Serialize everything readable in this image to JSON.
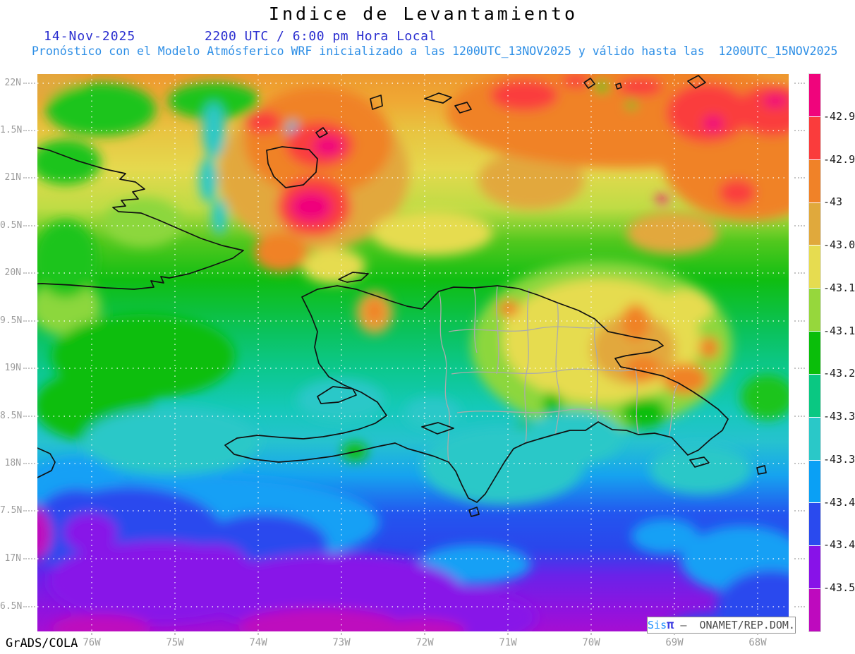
{
  "header": {
    "title": "Indice de Levantamiento",
    "date": "14-Nov-2025",
    "time": "2200 UTC / 6:00 pm Hora Local",
    "subtitle": "Pronóstico con el Modelo Atmósferico WRF inicializado a las 1200UTC_13NOV2025 y válido hasta las  1200UTC_15NOV2025",
    "title_color": "#000000",
    "date_color": "#2B2FD0",
    "subtitle_color": "#2E8FE6"
  },
  "map": {
    "lat_labels": [
      "22N",
      "1.5N",
      "21N",
      "0.5N",
      "20N",
      "9.5N",
      "19N",
      "8.5N",
      "18N",
      "7.5N",
      "17N",
      "6.5N"
    ],
    "lon_labels": [
      "76W",
      "75W",
      "74W",
      "73W",
      "72W",
      "71W",
      "70W",
      "69W",
      "68W"
    ],
    "grid_color": "#FFFFFF",
    "coastline_color": "#111111",
    "province_border_color": "#ABABAB",
    "axis_label_color": "#9C9C9C"
  },
  "colorbar": {
    "tick_labels": [
      "-42.9",
      "-42.9",
      "-43",
      "-43.0",
      "-43.1",
      "-43.1",
      "-43.2",
      "-43.3",
      "-43.3",
      "-43.4",
      "-43.4",
      "-43.5"
    ],
    "segment_colors": [
      "#F0047C",
      "#FA3C3C",
      "#F08228",
      "#E0A93C",
      "#E6DC50",
      "#96D73C",
      "#0ABE0A",
      "#0AC882",
      "#2AC8C8",
      "#0AA0F5",
      "#2A4AEE",
      "#8812E8",
      "#BE0ABE"
    ]
  },
  "footer": {
    "credit": "GrADS/COLA",
    "badge_sis": "Sis",
    "badge_pi": "π",
    "badge_rest": " –  ONAMET/REP.DOM."
  }
}
